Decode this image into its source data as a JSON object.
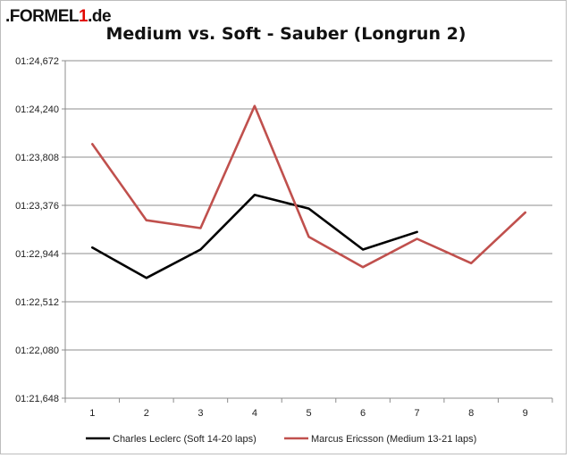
{
  "logo": {
    "prefix": ".FORMEL",
    "accent": "1",
    "suffix": ".de"
  },
  "chart_data": {
    "type": "line",
    "title": "Medium vs. Soft - Sauber (Longrun 2)",
    "xlabel": "",
    "ylabel": "",
    "categories": [
      "1",
      "2",
      "3",
      "4",
      "5",
      "6",
      "7",
      "8",
      "9"
    ],
    "y_ticks": [
      "01:21,648",
      "01:22,080",
      "01:22,512",
      "01:22,944",
      "01:23,376",
      "01:23,808",
      "01:24,240",
      "01:24,672"
    ],
    "ylim": [
      81.648,
      85.104
    ],
    "grid": true,
    "legend_position": "bottom",
    "series": [
      {
        "name": "Charles Leclerc (Soft 14-20 laps)",
        "color": "#000000",
        "values": [
          83.19,
          82.88,
          83.17,
          83.73,
          83.59,
          83.17,
          83.35,
          null,
          null
        ]
      },
      {
        "name": "Marcus Ericsson (Medium 13-21 laps)",
        "color": "#c0504d",
        "values": [
          84.25,
          83.47,
          83.39,
          84.64,
          83.3,
          82.99,
          83.28,
          83.03,
          83.55
        ]
      }
    ]
  }
}
